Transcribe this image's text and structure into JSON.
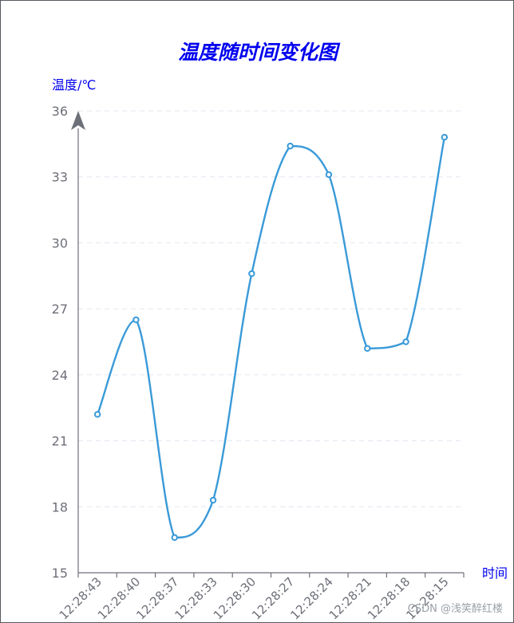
{
  "watermark": "CSDN @浅笑醉红楼",
  "colors": {
    "series": "#3a9ad8",
    "axis": "#6e7079",
    "grid": "#e0e6f1",
    "title": "#0000ee"
  },
  "chart_data": {
    "type": "line",
    "title": "温度随时间变化图",
    "xlabel": "时间",
    "ylabel": "温度/℃",
    "categories": [
      "12:28:43",
      "12:28:40",
      "12:28:37",
      "12:28:33",
      "12:28:30",
      "12:28:27",
      "12:28:24",
      "12:28:21",
      "12:28:18",
      "12:28:15"
    ],
    "values": [
      22.2,
      26.5,
      16.6,
      18.3,
      28.6,
      34.4,
      33.1,
      25.2,
      25.5,
      34.8
    ],
    "ylim": [
      15,
      36
    ],
    "yticks": [
      15,
      18,
      21,
      24,
      27,
      30,
      33,
      36
    ],
    "grid": true,
    "smooth": true,
    "legend": "none"
  }
}
